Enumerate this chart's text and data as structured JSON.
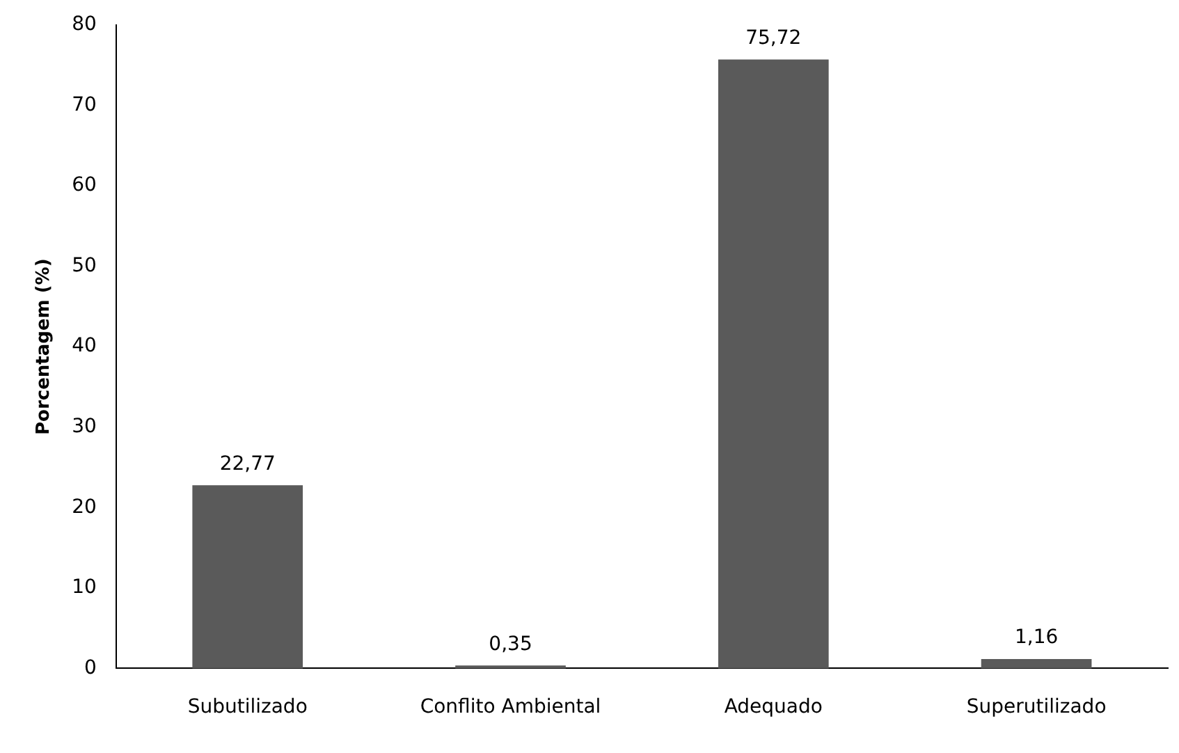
{
  "chart_data": {
    "type": "bar",
    "ylabel": "Porcentagem (%)",
    "categories": [
      "Subutilizado",
      "Conflito Ambiental",
      "Adequado",
      "Superutilizado"
    ],
    "values": [
      22.77,
      0.35,
      75.72,
      1.16
    ],
    "value_labels": [
      "22,77",
      "0,35",
      "75,72",
      "1,16"
    ],
    "color": "#5a5a5a",
    "ylim": [
      0,
      80
    ],
    "yticks": [
      0,
      10,
      20,
      30,
      40,
      50,
      60,
      70,
      80
    ],
    "grid": false,
    "legend": false
  }
}
